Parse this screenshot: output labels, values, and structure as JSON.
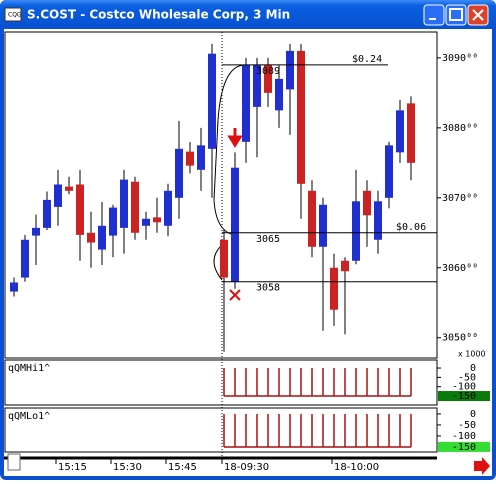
{
  "chart_data": {
    "type": "candlestick",
    "title": "S.COST - Costco Wholesale Corp, 3 Min",
    "categories": [
      null,
      null,
      null,
      null,
      "15:15",
      null,
      null,
      null,
      null,
      "15:30",
      null,
      null,
      null,
      null,
      "15:45",
      null,
      null,
      null,
      null,
      "18-09:30",
      null,
      null,
      null,
      null,
      null,
      null,
      null,
      null,
      null,
      "18-10:00",
      null,
      null,
      null,
      null,
      null,
      null,
      null
    ],
    "open": [
      3056.6,
      3058.6,
      3064.6,
      3065.7,
      3068.7,
      3071.6,
      3071.9,
      3065.0,
      3062.6,
      3064.6,
      3065.7,
      3072.3,
      3066.0,
      3067.2,
      3066.0,
      3070.0,
      3076.6,
      3074.0,
      3077.0,
      3064.0,
      3058.0,
      3078.0,
      3083.0,
      3089.0,
      3082.5,
      3085.5,
      3091.0,
      3071.0,
      3063.0,
      3060.0,
      3061.0,
      3061.0,
      3071.0,
      3064.0,
      3070.0,
      3076.5,
      3083.5
    ],
    "high": [
      3058.6,
      3064.7,
      3067.6,
      3070.9,
      3074.0,
      3073.0,
      3074.0,
      3068.0,
      3069.4,
      3069.0,
      3074.0,
      3073.0,
      3068.0,
      3070.0,
      3072.0,
      3081.0,
      3078.0,
      3080.0,
      3092.0,
      3065.5,
      3076.5,
      3090.0,
      3090.0,
      3090.0,
      3089.0,
      3092.0,
      3092.0,
      3072.5,
      3070.0,
      3062.0,
      3061.5,
      3074.0,
      3072.5,
      3071.0,
      3078.0,
      3084.0,
      3084.5
    ],
    "low": [
      3055.9,
      3058.0,
      3060.4,
      3065.4,
      3066.0,
      3070.5,
      3061.0,
      3060.0,
      3060.4,
      3061.5,
      3062.0,
      3064.0,
      3064.0,
      3065.0,
      3064.5,
      3067.0,
      3073.5,
      3071.0,
      3070.0,
      3048.0,
      3057.0,
      3075.0,
      3075.8,
      3083.0,
      3080.0,
      3079.0,
      3067.0,
      3061.5,
      3051.0,
      3051.7,
      3050.5,
      3060.5,
      3063.0,
      3062.0,
      3068.5,
      3075.0,
      3072.5
    ],
    "close": [
      3057.9,
      3064.0,
      3065.7,
      3069.7,
      3071.9,
      3071.0,
      3064.7,
      3063.6,
      3066.0,
      3068.6,
      3072.6,
      3065.0,
      3067.0,
      3066.5,
      3071.0,
      3077.0,
      3074.6,
      3077.5,
      3090.6,
      3058.6,
      3074.3,
      3089.0,
      3089.0,
      3085.0,
      3087.0,
      3091.0,
      3072.0,
      3063.0,
      3069.0,
      3054.0,
      3059.5,
      3069.5,
      3067.5,
      3069.5,
      3077.5,
      3082.5,
      3075.0
    ],
    "up_color": "#1f2fd0",
    "down_color": "#cc2222",
    "ylim": [
      3047.1,
      3093.7
    ],
    "yticks": [
      {
        "value": 3090,
        "label": "3090⁰⁰"
      },
      {
        "value": 3080,
        "label": "3080⁰⁰"
      },
      {
        "value": 3070,
        "label": "3070⁰⁰"
      },
      {
        "value": 3060,
        "label": "3060⁰⁰"
      },
      {
        "value": 3050,
        "label": "3050⁰⁰"
      }
    ],
    "y_unit": "x 1000",
    "levels": [
      {
        "value": 3089,
        "change": "$0.24"
      },
      {
        "value": 3065,
        "change": "$0.06"
      },
      {
        "value": 3058
      }
    ],
    "panels": [
      {
        "title": "qQMHi1^",
        "ylim": [
          -198,
          43
        ],
        "yticks": [
          0,
          -50,
          -100
        ],
        "color": "#aa1111",
        "current_color": "#0a7a0a",
        "values": [
          null,
          null,
          null,
          null,
          null,
          null,
          null,
          null,
          null,
          null,
          null,
          null,
          null,
          null,
          null,
          null,
          null,
          null,
          null,
          -150,
          -150,
          -150,
          -150,
          -150,
          -150,
          -150,
          -150,
          -150,
          -150,
          -150,
          -150,
          -150,
          -150,
          -150,
          -150,
          -150,
          -150
        ]
      },
      {
        "title": "qQMLo1^",
        "ylim": [
          -173,
          27
        ],
        "yticks": [
          0,
          -50,
          -100
        ],
        "color": "#aa1111",
        "current_color": "#33dd33",
        "values": [
          null,
          null,
          null,
          null,
          null,
          null,
          null,
          null,
          null,
          null,
          null,
          null,
          null,
          null,
          null,
          null,
          null,
          null,
          null,
          -150,
          -150,
          -150,
          -150,
          -150,
          -150,
          -150,
          -150,
          -150,
          -150,
          -150,
          -150,
          -150,
          -150,
          -150,
          -150,
          -150,
          -150
        ]
      }
    ]
  }
}
